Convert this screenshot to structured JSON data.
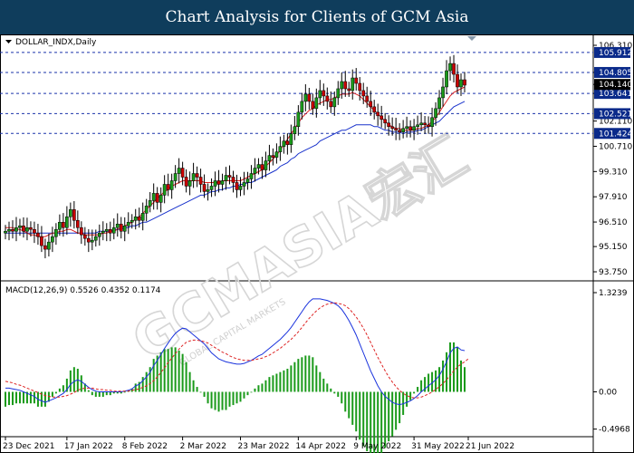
{
  "header": {
    "title": "Chart Analysis for Clients of GCM Asia"
  },
  "watermark": {
    "text": "GCMASIA宏汇",
    "subtext": "GLOBAL CAPITAL MARKETS"
  },
  "colors": {
    "bull": "#1a9a1a",
    "bear": "#cc0000",
    "ma_fast": "#dd2222",
    "ma_slow": "#1a33cc",
    "macd_line": "#1a33dd",
    "signal": "#dd2222",
    "hist": "#1a9a1a",
    "level": "#1a33aa",
    "tag_bg": "#0a2a8a"
  },
  "chart_data": [
    {
      "type": "candlestick",
      "instrument_label": "DOLLAR_INDX,Daily",
      "y_ticks": [
        "106.310",
        "104.805",
        "104.140",
        "103.641",
        "102.110",
        "100.710",
        "99.310",
        "97.910",
        "96.510",
        "95.150",
        "93.750"
      ],
      "ylim": [
        93.75,
        106.31
      ],
      "x_ticks": [
        {
          "label": "23 Dec 2021",
          "i": 0
        },
        {
          "label": "17 Jan 2022",
          "i": 17
        },
        {
          "label": "8 Feb 2022",
          "i": 33
        },
        {
          "label": "2 Mar 2022",
          "i": 49
        },
        {
          "label": "23 Mar 2022",
          "i": 65
        },
        {
          "label": "14 Apr 2022",
          "i": 81
        },
        {
          "label": "9 May 2022",
          "i": 97
        },
        {
          "label": "31 May 2022",
          "i": 113
        },
        {
          "label": "21 Jun 2022",
          "i": 128
        }
      ],
      "levels": [
        {
          "value": 105.912,
          "label": "105.912"
        },
        {
          "value": 104.805,
          "label": "104.805"
        },
        {
          "value": 103.641,
          "label": "103.641"
        },
        {
          "value": 102.521,
          "label": "102.521"
        },
        {
          "value": 101.424,
          "label": "101.424"
        }
      ],
      "current_price": {
        "value": 104.14,
        "label": "104.140"
      },
      "close": [
        96.0,
        96.1,
        96.0,
        96.2,
        96.3,
        96.0,
        96.2,
        96.1,
        95.9,
        95.7,
        95.2,
        95.0,
        95.4,
        95.7,
        96.1,
        96.5,
        96.2,
        96.8,
        97.2,
        96.6,
        96.2,
        95.8,
        95.6,
        95.4,
        95.5,
        95.7,
        95.9,
        96.0,
        96.1,
        95.9,
        96.2,
        96.4,
        96.0,
        96.3,
        96.5,
        96.6,
        96.8,
        96.6,
        97.0,
        97.4,
        97.7,
        98.1,
        97.6,
        98.0,
        98.6,
        98.3,
        98.8,
        99.2,
        99.5,
        99.0,
        98.5,
        98.8,
        99.2,
        99.0,
        98.6,
        98.2,
        98.3,
        98.5,
        98.8,
        98.6,
        98.8,
        99.1,
        99.0,
        98.7,
        98.3,
        98.5,
        98.7,
        98.9,
        99.2,
        99.5,
        99.7,
        99.4,
        99.9,
        100.2,
        100.1,
        100.4,
        100.7,
        101.0,
        100.8,
        101.4,
        101.8,
        102.6,
        103.2,
        103.6,
        103.2,
        102.8,
        103.4,
        103.8,
        103.5,
        103.2,
        102.9,
        103.4,
        103.9,
        104.3,
        103.9,
        103.8,
        104.5,
        104.2,
        103.8,
        103.5,
        103.2,
        102.9,
        102.6,
        102.4,
        102.2,
        102.0,
        101.8,
        101.7,
        101.6,
        101.5,
        101.7,
        101.8,
        101.6,
        101.8,
        101.9,
        102.0,
        101.9,
        101.8,
        102.3,
        102.8,
        103.4,
        104.0,
        104.9,
        105.3,
        104.7,
        104.0,
        104.4,
        104.1
      ],
      "ma_fast": [
        96.2,
        96.2,
        96.2,
        96.1,
        96.1,
        96.0,
        95.9,
        95.8,
        95.8,
        95.7,
        95.7,
        95.7,
        95.8,
        95.9,
        95.9,
        96.0,
        96.0,
        96.1,
        96.1,
        96.0,
        95.9,
        95.9,
        95.8,
        95.8,
        95.8,
        95.8,
        95.8,
        95.9,
        95.9,
        96.0,
        96.0,
        96.1,
        96.2,
        96.3,
        96.4,
        96.5,
        96.7,
        96.8,
        97.0,
        97.2,
        97.4,
        97.6,
        97.8,
        98.0,
        98.2,
        98.3,
        98.5,
        98.6,
        98.7,
        98.8,
        98.8,
        98.8,
        98.8,
        98.8,
        98.8,
        98.7,
        98.7,
        98.7,
        98.7,
        98.7,
        98.8,
        98.8,
        98.8,
        98.8,
        98.8,
        98.8,
        98.9,
        99.0,
        99.1,
        99.2,
        99.3,
        99.4,
        99.6,
        99.8,
        100.0,
        100.2,
        100.5,
        100.8,
        101.1,
        101.4,
        101.7,
        102.0,
        102.3,
        102.5,
        102.7,
        102.8,
        103.0,
        103.1,
        103.2,
        103.3,
        103.3,
        103.4,
        103.5,
        103.6,
        103.6,
        103.6,
        103.7,
        103.6,
        103.5,
        103.3,
        103.1,
        102.9,
        102.7,
        102.5,
        102.3,
        102.1,
        101.9,
        101.8,
        101.7,
        101.7,
        101.6,
        101.6,
        101.6,
        101.6,
        101.7,
        101.7,
        101.8,
        101.9,
        102.1,
        102.3,
        102.6,
        102.9,
        103.2,
        103.5,
        103.7,
        103.8,
        103.9,
        104.0
      ],
      "ma_slow": [
        95.9,
        95.9,
        95.9,
        95.9,
        95.9,
        95.9,
        95.9,
        95.9,
        95.9,
        95.9,
        95.9,
        95.9,
        95.9,
        95.9,
        95.9,
        95.9,
        95.9,
        95.9,
        95.9,
        95.9,
        95.9,
        95.9,
        95.9,
        95.9,
        95.9,
        95.9,
        96.0,
        96.0,
        96.0,
        96.0,
        96.1,
        96.1,
        96.1,
        96.2,
        96.2,
        96.3,
        96.3,
        96.4,
        96.5,
        96.5,
        96.6,
        96.7,
        96.8,
        96.9,
        97.0,
        97.1,
        97.2,
        97.3,
        97.4,
        97.5,
        97.6,
        97.7,
        97.8,
        97.9,
        98.0,
        98.0,
        98.1,
        98.2,
        98.2,
        98.3,
        98.3,
        98.4,
        98.4,
        98.5,
        98.5,
        98.6,
        98.6,
        98.7,
        98.7,
        98.8,
        98.9,
        99.0,
        99.1,
        99.2,
        99.3,
        99.4,
        99.6,
        99.7,
        99.8,
        100.0,
        100.1,
        100.3,
        100.4,
        100.5,
        100.6,
        100.7,
        100.8,
        101.0,
        101.1,
        101.2,
        101.3,
        101.4,
        101.5,
        101.6,
        101.6,
        101.7,
        101.8,
        101.9,
        101.9,
        101.9,
        101.9,
        101.9,
        101.8,
        101.8,
        101.7,
        101.6,
        101.6,
        101.5,
        101.5,
        101.5,
        101.4,
        101.5,
        101.5,
        101.5,
        101.6,
        101.6,
        101.7,
        101.8,
        101.9,
        102.0,
        102.1,
        102.3,
        102.5,
        102.7,
        102.9,
        103.0,
        103.1,
        103.2
      ]
    },
    {
      "type": "macd",
      "label": "MACD(12,26,9) 0.5526 0.4352 0.1174",
      "y_ticks": [
        "1.3239",
        "0.00",
        "-0.4968"
      ],
      "ylim": [
        -0.55,
        1.36
      ],
      "macd_line": [
        0.05,
        0.05,
        0.04,
        0.03,
        0.02,
        0.0,
        -0.02,
        -0.04,
        -0.06,
        -0.1,
        -0.12,
        -0.14,
        -0.12,
        -0.1,
        -0.08,
        -0.05,
        -0.02,
        0.03,
        0.1,
        0.14,
        0.16,
        0.14,
        0.1,
        0.06,
        0.03,
        0.01,
        0.0,
        0.0,
        0.0,
        0.0,
        0.0,
        0.0,
        0.0,
        0.01,
        0.02,
        0.04,
        0.08,
        0.1,
        0.15,
        0.2,
        0.26,
        0.35,
        0.42,
        0.5,
        0.58,
        0.65,
        0.72,
        0.78,
        0.82,
        0.85,
        0.84,
        0.8,
        0.76,
        0.72,
        0.68,
        0.64,
        0.58,
        0.52,
        0.48,
        0.44,
        0.42,
        0.4,
        0.39,
        0.38,
        0.37,
        0.37,
        0.38,
        0.4,
        0.42,
        0.45,
        0.48,
        0.5,
        0.54,
        0.58,
        0.62,
        0.66,
        0.7,
        0.75,
        0.8,
        0.86,
        0.93,
        1.0,
        1.07,
        1.14,
        1.2,
        1.24,
        1.24,
        1.24,
        1.23,
        1.22,
        1.2,
        1.18,
        1.15,
        1.1,
        1.03,
        0.95,
        0.86,
        0.76,
        0.64,
        0.52,
        0.4,
        0.28,
        0.18,
        0.08,
        0.0,
        -0.06,
        -0.1,
        -0.14,
        -0.16,
        -0.17,
        -0.16,
        -0.14,
        -0.12,
        -0.09,
        -0.05,
        0.0,
        0.04,
        0.08,
        0.12,
        0.16,
        0.22,
        0.3,
        0.4,
        0.52,
        0.58,
        0.6,
        0.56,
        0.55
      ],
      "signal_line": [
        0.14,
        0.13,
        0.12,
        0.1,
        0.09,
        0.07,
        0.05,
        0.03,
        0.01,
        -0.01,
        -0.03,
        -0.05,
        -0.06,
        -0.07,
        -0.07,
        -0.07,
        -0.06,
        -0.05,
        -0.03,
        -0.01,
        0.02,
        0.04,
        0.05,
        0.05,
        0.05,
        0.04,
        0.03,
        0.03,
        0.02,
        0.02,
        0.01,
        0.01,
        0.01,
        0.01,
        0.01,
        0.02,
        0.03,
        0.04,
        0.06,
        0.08,
        0.11,
        0.15,
        0.2,
        0.26,
        0.32,
        0.39,
        0.45,
        0.51,
        0.57,
        0.62,
        0.66,
        0.68,
        0.69,
        0.69,
        0.68,
        0.67,
        0.65,
        0.62,
        0.59,
        0.56,
        0.53,
        0.51,
        0.48,
        0.46,
        0.44,
        0.43,
        0.42,
        0.42,
        0.42,
        0.43,
        0.44,
        0.45,
        0.47,
        0.49,
        0.52,
        0.55,
        0.58,
        0.62,
        0.66,
        0.7,
        0.75,
        0.8,
        0.86,
        0.92,
        0.98,
        1.03,
        1.08,
        1.12,
        1.15,
        1.17,
        1.18,
        1.19,
        1.18,
        1.17,
        1.15,
        1.11,
        1.06,
        1.0,
        0.93,
        0.85,
        0.76,
        0.66,
        0.56,
        0.46,
        0.37,
        0.28,
        0.2,
        0.13,
        0.07,
        0.02,
        -0.02,
        -0.05,
        -0.07,
        -0.08,
        -0.08,
        -0.07,
        -0.05,
        -0.03,
        0.0,
        0.03,
        0.07,
        0.11,
        0.16,
        0.22,
        0.28,
        0.33,
        0.37,
        0.4,
        0.44
      ]
    }
  ]
}
